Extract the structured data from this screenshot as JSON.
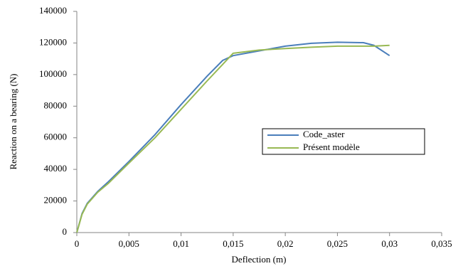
{
  "chart_data": {
    "type": "line",
    "x_label": "Deflection (m)",
    "y_label": "Reaction on a bearing (N)",
    "x": [
      0,
      0.0005,
      0.001,
      0.002,
      0.003,
      0.005,
      0.0075,
      0.01,
      0.0125,
      0.014,
      0.015,
      0.0175,
      0.02,
      0.0225,
      0.025,
      0.0275,
      0.0285,
      0.03
    ],
    "series": [
      {
        "name": "Code_aster",
        "color": "#4a7ebb",
        "values": [
          0,
          12000,
          18500,
          26000,
          32000,
          45000,
          62000,
          81000,
          99000,
          109000,
          112000,
          115000,
          118000,
          119800,
          120500,
          120200,
          118500,
          112000
        ]
      },
      {
        "name": "Présent modèle",
        "color": "#98b954",
        "values": [
          0,
          11500,
          18000,
          25500,
          31000,
          44000,
          60000,
          78000,
          96000,
          106500,
          113500,
          115500,
          116500,
          117300,
          118000,
          118000,
          118000,
          118500
        ]
      }
    ],
    "xlim": [
      0,
      0.035
    ],
    "xticks": [
      0,
      {
        "value": 0.005,
        "label": "0,005"
      },
      {
        "value": 0.01,
        "label": "0,01"
      },
      {
        "value": 0.015,
        "label": "0,015"
      },
      {
        "value": 0.02,
        "label": "0,02"
      },
      {
        "value": 0.025,
        "label": "0,025"
      },
      {
        "value": 0.03,
        "label": "0,03"
      },
      {
        "value": 0.035,
        "label": "0,035"
      }
    ],
    "ylim": [
      0,
      140000
    ],
    "yticks": [
      0,
      20000,
      40000,
      60000,
      80000,
      100000,
      120000,
      140000
    ],
    "grid": false
  }
}
